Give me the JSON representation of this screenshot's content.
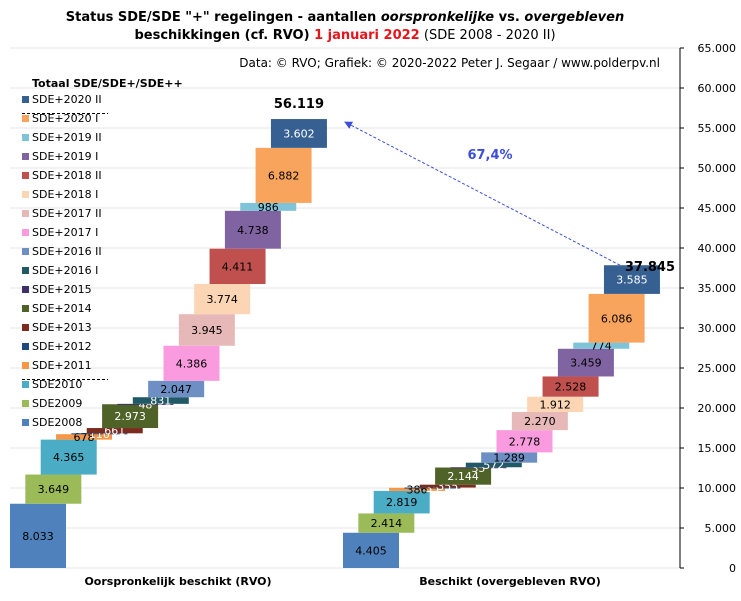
{
  "chart_data": {
    "type": "waterfall",
    "title": {
      "line1_part1": "Status SDE/SDE \"+\" regelingen - aantallen ",
      "line1_part2": "oorspronkelijke",
      "line1_part3": " vs. ",
      "line1_part4": "overgebleven",
      "line2_part1": "beschikkingen (cf. RVO) ",
      "line2_part2": "1 januari 2022",
      "line2_part3": " (SDE 2008 - 2020 II)"
    },
    "source_note": "Data: © RVO; Grafiek: © 2020-2022 Peter J. Segaar / www.polderpv.nl",
    "legend_title": "Totaal SDE/SDE+/SDE++",
    "legend_placement": "top-left",
    "y_axis": {
      "min": 0,
      "max": 65000,
      "step": 5000,
      "position": "right",
      "tick_labels": [
        "0",
        "5.000",
        "10.000",
        "15.000",
        "20.000",
        "25.000",
        "30.000",
        "35.000",
        "40.000",
        "45.000",
        "50.000",
        "55.000",
        "60.000",
        "65.000"
      ]
    },
    "grid": true,
    "groups": [
      {
        "label": "Oorspronkelijk beschikt (RVO)",
        "total": 56119,
        "total_label": "56.119"
      },
      {
        "label": "Beschikt (overgebleven RVO)",
        "total": 37845,
        "total_label": "37.845"
      }
    ],
    "ratio_label": "67,4%",
    "series": [
      {
        "name": "SDE2008",
        "color": "#4f81bd",
        "values": [
          8033,
          4405
        ],
        "labels": [
          "8.033",
          "4.405"
        ]
      },
      {
        "name": "SDE2009",
        "color": "#9bbb59",
        "values": [
          3649,
          2414
        ],
        "labels": [
          "3.649",
          "2.414"
        ]
      },
      {
        "name": "SDE2010",
        "color": "#4bacc6",
        "values": [
          4365,
          2819
        ],
        "labels": [
          "4.365",
          "2.819"
        ]
      },
      {
        "name": "SDE+2011",
        "color": "#f79646",
        "values": [
          678,
          386
        ],
        "labels": [
          "678",
          "386"
        ]
      },
      {
        "name": "SDE+2012",
        "color": "#1f497d",
        "values": [
          110,
          35
        ],
        "labels": [
          "110",
          "35"
        ]
      },
      {
        "name": "SDE+2013",
        "color": "#7b2c1f",
        "values": [
          661,
          355
        ],
        "labels": [
          "661",
          "355"
        ]
      },
      {
        "name": "SDE+2014",
        "color": "#4f6228",
        "values": [
          2973,
          2144
        ],
        "labels": [
          "2.973",
          "2.144"
        ]
      },
      {
        "name": "SDE+2015",
        "color": "#3f3167",
        "values": [
          48,
          35
        ],
        "labels": [
          "48",
          "35"
        ]
      },
      {
        "name": "SDE+2016 I",
        "color": "#215967",
        "values": [
          831,
          572
        ],
        "labels": [
          "831",
          "572"
        ]
      },
      {
        "name": "SDE+2016 II",
        "color": "#6d8fc4",
        "values": [
          2047,
          1289
        ],
        "labels": [
          "2.047",
          "1.289"
        ]
      },
      {
        "name": "SDE+2017 I",
        "color": "#f99bde",
        "values": [
          4386,
          2778
        ],
        "labels": [
          "4.386",
          "2.778"
        ]
      },
      {
        "name": "SDE+2017 II",
        "color": "#e6b9b8",
        "values": [
          3945,
          2270
        ],
        "labels": [
          "3.945",
          "2.270"
        ]
      },
      {
        "name": "SDE+2018 I",
        "color": "#fcd5b4",
        "values": [
          3774,
          1912
        ],
        "labels": [
          "3.774",
          "1.912"
        ]
      },
      {
        "name": "SDE+2018 II",
        "color": "#c0504d",
        "values": [
          4411,
          2528
        ],
        "labels": [
          "4.411",
          "2.528"
        ]
      },
      {
        "name": "SDE+2019 I",
        "color": "#8064a2",
        "values": [
          4738,
          3459
        ],
        "labels": [
          "4.738",
          "3.459"
        ]
      },
      {
        "name": "SDE+2019 II",
        "color": "#7fc3d8",
        "values": [
          986,
          774
        ],
        "labels": [
          "986",
          "774"
        ]
      },
      {
        "name": "SDE+2020 I",
        "color": "#f9a45c",
        "values": [
          6882,
          6086
        ],
        "labels": [
          "6.882",
          "6.086"
        ]
      },
      {
        "name": "SDE+2020 II",
        "color": "#366092",
        "values": [
          3602,
          3585
        ],
        "labels": [
          "3.602",
          "3.585"
        ]
      }
    ]
  }
}
